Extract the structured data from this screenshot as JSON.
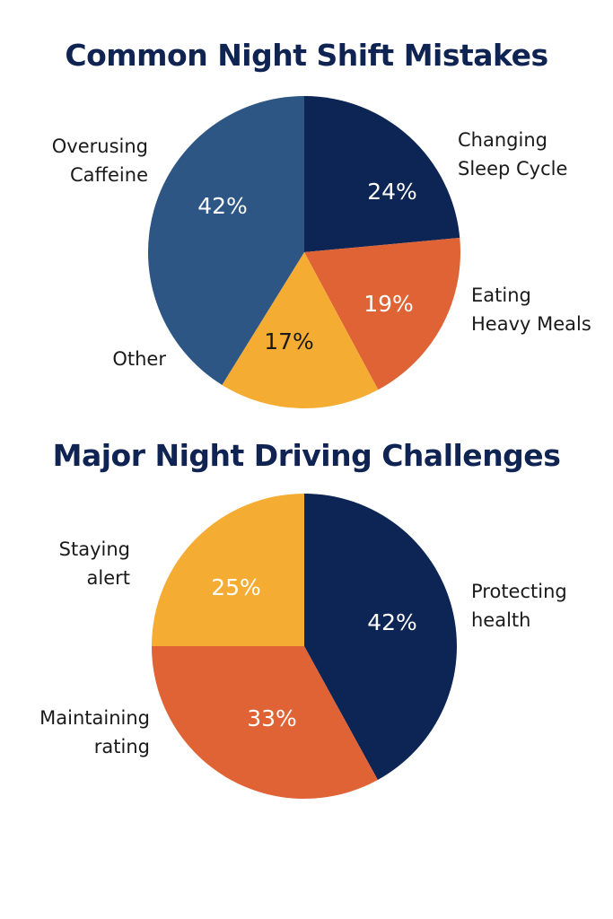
{
  "chart_data": [
    {
      "type": "pie",
      "title": "Common Night Shift Mistakes",
      "slices": [
        {
          "label": [
            "Changing",
            "Sleep Cycle"
          ],
          "value": 24,
          "value_label": "24%",
          "color": "#0d2554",
          "text_color": "#ffffff"
        },
        {
          "label": [
            "Eating",
            "Heavy Meals"
          ],
          "value": 19,
          "value_label": "19%",
          "color": "#df6335",
          "text_color": "#ffffff"
        },
        {
          "label": [
            "Other"
          ],
          "value": 17,
          "value_label": "17%",
          "color": "#f5ac32",
          "text_color": "#1a1a1a"
        },
        {
          "label": [
            "Overusing",
            "Caffeine"
          ],
          "value": 42,
          "value_label": "42%",
          "color": "#2d5685",
          "text_color": "#ffffff"
        }
      ]
    },
    {
      "type": "pie",
      "title": "Major Night Driving Challenges",
      "slices": [
        {
          "label": [
            "Protecting",
            "health"
          ],
          "value": 42,
          "value_label": "42%",
          "color": "#0d2554",
          "text_color": "#ffffff"
        },
        {
          "label": [
            "Maintaining",
            "rating"
          ],
          "value": 33,
          "value_label": "33%",
          "color": "#df6335",
          "text_color": "#ffffff"
        },
        {
          "label": [
            "Staying",
            "alert"
          ],
          "value": 25,
          "value_label": "25%",
          "color": "#f5ac32",
          "text_color": "#ffffff"
        }
      ]
    }
  ]
}
